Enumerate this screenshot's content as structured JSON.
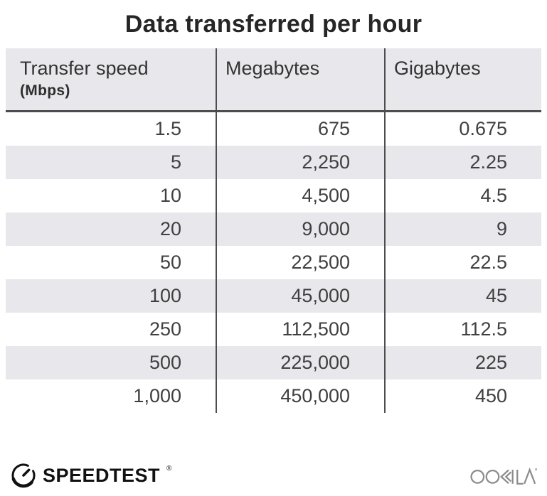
{
  "title": "Data transferred per hour",
  "chart_data": {
    "type": "table",
    "title": "Data transferred per hour",
    "columns": [
      "Transfer speed (Mbps)",
      "Megabytes",
      "Gigabytes"
    ],
    "rows": [
      [
        1.5,
        675,
        0.675
      ],
      [
        5,
        2250,
        2.25
      ],
      [
        10,
        4500,
        4.5
      ],
      [
        20,
        9000,
        9
      ],
      [
        50,
        22500,
        22.5
      ],
      [
        100,
        45000,
        45
      ],
      [
        250,
        112500,
        112.5
      ],
      [
        500,
        225000,
        225
      ],
      [
        1000,
        450000,
        450
      ]
    ],
    "layout": {
      "striped_rows": true,
      "header_background": "#e8e7ec",
      "column_dividers": true
    }
  },
  "table": {
    "header": {
      "col1_line1": "Transfer speed",
      "col1_line2": "(Mbps)",
      "col2": "Megabytes",
      "col3": "Gigabytes"
    },
    "rows": [
      [
        "1.5",
        "675",
        "0.675"
      ],
      [
        "5",
        "2,250",
        "2.25"
      ],
      [
        "10",
        "4,500",
        "4.5"
      ],
      [
        "20",
        "9,000",
        "9"
      ],
      [
        "50",
        "22,500",
        "22.5"
      ],
      [
        "100",
        "45,000",
        "45"
      ],
      [
        "250",
        "112,500",
        "112.5"
      ],
      [
        "500",
        "225,000",
        "225"
      ],
      [
        "1,000",
        "450,000",
        "450"
      ]
    ]
  },
  "footer": {
    "speedtest": {
      "label": "SPEEDTEST",
      "trademark": "®"
    },
    "ookla": {
      "label": "OOKLA",
      "trademark": "®"
    }
  },
  "colors": {
    "background": "#ffffff",
    "header_bg": "#e8e7ec",
    "stripe_bg": "#e8e7ec",
    "rule": "#4d4d4d",
    "title_text": "#262626",
    "body_text": "#404040",
    "speedtest_black": "#111111",
    "ookla_gray": "#8c8c8c"
  }
}
